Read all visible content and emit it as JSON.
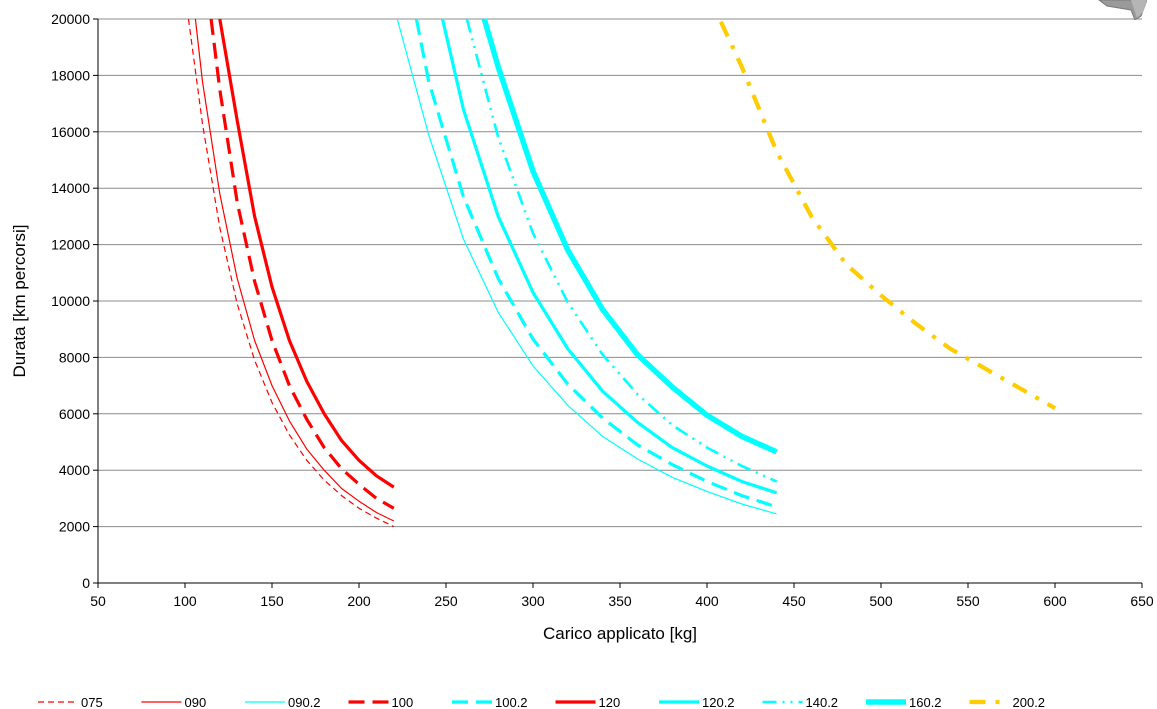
{
  "chart_data": {
    "type": "line",
    "title": "",
    "xlabel": "Carico applicato [kg]",
    "ylabel": "Durata [km percorsi]",
    "xlim": [
      50,
      650
    ],
    "ylim": [
      0,
      20000
    ],
    "xticks": [
      50,
      100,
      150,
      200,
      250,
      300,
      350,
      400,
      450,
      500,
      550,
      600,
      650
    ],
    "yticks": [
      0,
      2000,
      4000,
      6000,
      8000,
      10000,
      12000,
      14000,
      16000,
      18000,
      20000
    ],
    "grid": "horizontal",
    "legend_position": "bottom",
    "series": [
      {
        "name": "075",
        "color": "#ff0000",
        "style": "dashed-thin",
        "x": [
          102,
          110,
          120,
          130,
          140,
          150,
          160,
          170,
          180,
          190,
          200,
          210,
          220
        ],
        "y": [
          20000,
          16300,
          12600,
          9900,
          7900,
          6400,
          5250,
          4350,
          3650,
          3100,
          2650,
          2300,
          2000
        ]
      },
      {
        "name": "090",
        "color": "#ff0000",
        "style": "solid-thin",
        "x": [
          106,
          110,
          120,
          130,
          140,
          150,
          160,
          170,
          180,
          190,
          200,
          210,
          220
        ],
        "y": [
          20000,
          17800,
          13800,
          10800,
          8600,
          7000,
          5750,
          4750,
          4000,
          3350,
          2900,
          2500,
          2200
        ]
      },
      {
        "name": "090.2",
        "color": "#00ffff",
        "style": "solid-thin",
        "x": [
          222,
          240,
          260,
          280,
          300,
          320,
          340,
          360,
          380,
          400,
          420,
          440
        ],
        "y": [
          20000,
          15900,
          12200,
          9600,
          7700,
          6300,
          5200,
          4400,
          3750,
          3250,
          2800,
          2450
        ]
      },
      {
        "name": "100",
        "color": "#ff0000",
        "style": "long-dash-thick",
        "x": [
          115,
          120,
          130,
          140,
          150,
          160,
          170,
          180,
          190,
          200,
          210,
          220
        ],
        "y": [
          20000,
          17500,
          13500,
          10700,
          8600,
          7000,
          5800,
          4800,
          4050,
          3500,
          3000,
          2650
        ]
      },
      {
        "name": "100.2",
        "color": "#00ffff",
        "style": "long-dash-thick",
        "x": [
          233,
          240,
          260,
          280,
          300,
          320,
          340,
          360,
          380,
          400,
          420,
          440
        ],
        "y": [
          20000,
          17800,
          13700,
          10800,
          8650,
          7050,
          5850,
          4900,
          4200,
          3600,
          3100,
          2700
        ]
      },
      {
        "name": "120",
        "color": "#ff0000",
        "style": "solid-thick",
        "x": [
          120,
          130,
          140,
          150,
          160,
          170,
          180,
          190,
          200,
          210,
          220
        ],
        "y": [
          20000,
          16400,
          13000,
          10500,
          8600,
          7150,
          6000,
          5050,
          4350,
          3800,
          3400
        ]
      },
      {
        "name": "120.2",
        "color": "#00ffff",
        "style": "solid-thick",
        "x": [
          248,
          260,
          280,
          300,
          320,
          340,
          360,
          380,
          400,
          420,
          440
        ],
        "y": [
          20000,
          16800,
          13000,
          10300,
          8300,
          6800,
          5700,
          4800,
          4150,
          3600,
          3200
        ]
      },
      {
        "name": "140.2",
        "color": "#00ffff",
        "style": "dash-dot-dot",
        "x": [
          262,
          280,
          300,
          320,
          340,
          360,
          380,
          400,
          420,
          440
        ],
        "y": [
          20000,
          15800,
          12400,
          9950,
          8100,
          6700,
          5600,
          4800,
          4150,
          3600
        ]
      },
      {
        "name": "160.2",
        "color": "#00ffff",
        "style": "solid-extra-thick",
        "x": [
          272,
          280,
          300,
          320,
          340,
          360,
          380,
          400,
          420,
          440
        ],
        "y": [
          20000,
          18300,
          14600,
          11800,
          9700,
          8100,
          6950,
          5950,
          5200,
          4650
        ]
      },
      {
        "name": "200.2",
        "color": "#ffcc00",
        "style": "dash-dot-thick",
        "x": [
          408,
          420,
          440,
          460,
          480,
          500,
          520,
          540,
          560,
          580,
          600
        ],
        "y": [
          19900,
          18300,
          15300,
          13000,
          11300,
          10200,
          9200,
          8300,
          7600,
          6900,
          6200
        ]
      }
    ]
  }
}
